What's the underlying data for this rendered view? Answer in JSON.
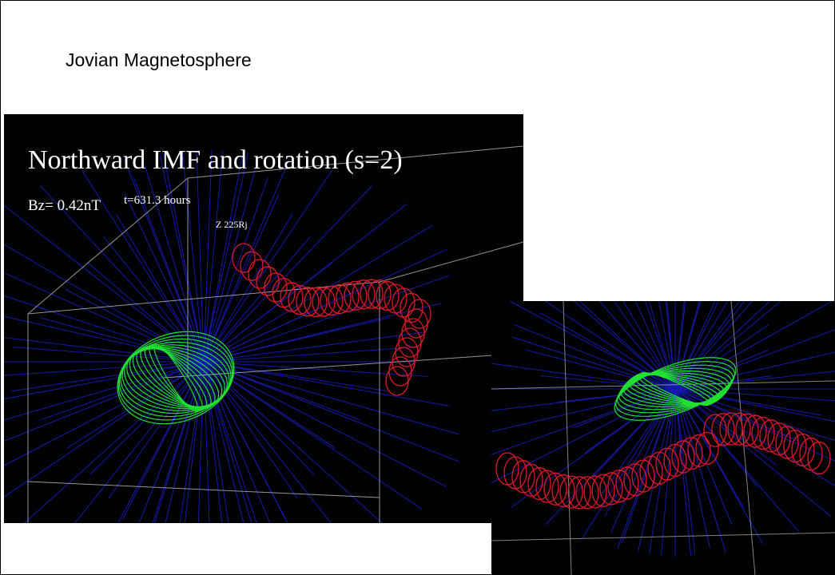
{
  "slide": {
    "title": "Jovian Magnetosphere",
    "images": [
      {
        "heading": "Northward IMF and rotation (s=2)",
        "field": "Bz= 0.42nT",
        "time": "t=631.3 hours",
        "axis": "Z 225Rj"
      }
    ]
  }
}
